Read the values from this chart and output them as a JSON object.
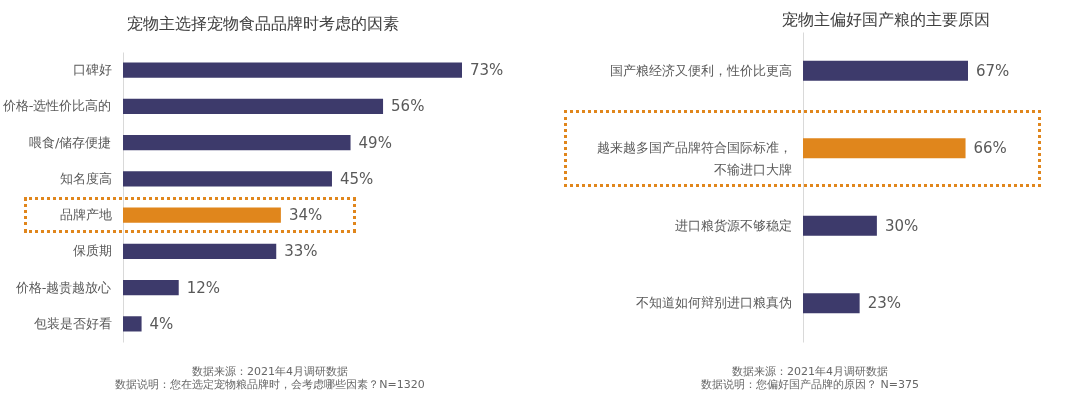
{
  "chart_data": [
    {
      "type": "bar",
      "orientation": "horizontal",
      "title": "宠物主选择宠物食品品牌时考虑的因素",
      "categories": [
        "口碑好",
        "价格-选性价比高的",
        "喂食/储存便捷",
        "知名度高",
        "品牌产地",
        "保质期",
        "价格-越贵越放心",
        "包装是否好看"
      ],
      "values": [
        73,
        56,
        49,
        45,
        34,
        33,
        12,
        4
      ],
      "colors": [
        "#3d3a6b",
        "#3d3a6b",
        "#3d3a6b",
        "#3d3a6b",
        "#e0861c",
        "#3d3a6b",
        "#3d3a6b",
        "#3d3a6b"
      ],
      "value_labels": [
        "73%",
        "56%",
        "49%",
        "45%",
        "34%",
        "33%",
        "12%",
        "4%"
      ],
      "annotations": [
        "数据来源：2021年4月调研数据",
        "数据说明：您在选定宠物粮品牌时，会考虑哪些因素？N=1320"
      ]
    },
    {
      "type": "bar",
      "orientation": "horizontal",
      "title": "宠物主偏好国产粮的主要原因",
      "categories": [
        "国产粮经济又便利，性价比更高",
        "越来越多国产品牌符合国际标准，不输进口大牌",
        "进口粮货源不够稳定",
        "不知道如何辩别进口粮真伪"
      ],
      "values": [
        67,
        66,
        30,
        23
      ],
      "colors": [
        "#3d3a6b",
        "#e0861c",
        "#3d3a6b",
        "#3d3a6b"
      ],
      "value_labels": [
        "67%",
        "66%",
        "30%",
        "23%"
      ],
      "annotations": [
        "数据来源：2021年4月调研数据",
        "数据说明：您偏好国产品牌的原因？ N=375"
      ]
    }
  ]
}
